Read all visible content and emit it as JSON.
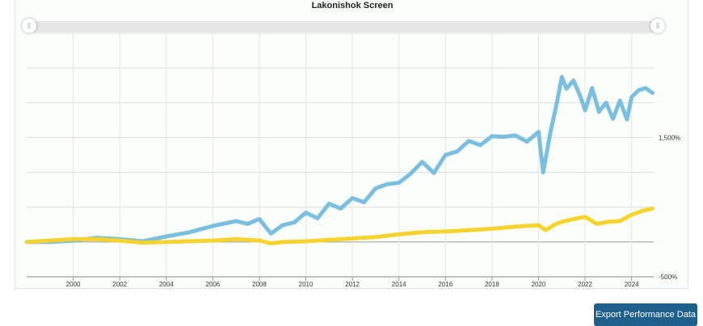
{
  "export_button": {
    "label": "Export Performance Data"
  },
  "chart_data": {
    "type": "line",
    "title": "Lakonishok Screen",
    "xlabel": "",
    "ylabel": "",
    "x_ticks": [
      "2000",
      "2002",
      "2004",
      "2006",
      "2008",
      "2010",
      "2012",
      "2014",
      "2016",
      "2018",
      "2020",
      "2022",
      "2024"
    ],
    "y_tick_labels": [
      "1,500%",
      "-500%"
    ],
    "ylim": [
      -500,
      3000
    ],
    "grid": true,
    "colors": [
      "#7bbfe0",
      "#f6d32d"
    ],
    "series": [
      {
        "name": "",
        "x": [
          1998.0,
          1999.0,
          2000.0,
          2001.0,
          2002.0,
          2003.0,
          2004.0,
          2005.0,
          2006.0,
          2007.0,
          2007.5,
          2008.0,
          2008.5,
          2009.0,
          2009.5,
          2010.0,
          2010.5,
          2011.0,
          2011.5,
          2012.0,
          2012.5,
          2013.0,
          2013.5,
          2014.0,
          2014.5,
          2015.0,
          2015.5,
          2016.0,
          2016.5,
          2017.0,
          2017.5,
          2018.0,
          2018.5,
          2019.0,
          2019.5,
          2020.0,
          2020.2,
          2020.5,
          2020.8,
          2021.0,
          2021.2,
          2021.5,
          2021.8,
          2022.0,
          2022.3,
          2022.6,
          2022.9,
          2023.2,
          2023.5,
          2023.8,
          2024.0,
          2024.3,
          2024.6,
          2024.9
        ],
        "values": [
          0,
          0,
          20,
          60,
          40,
          10,
          80,
          140,
          230,
          300,
          260,
          330,
          120,
          240,
          280,
          420,
          340,
          550,
          480,
          630,
          570,
          770,
          830,
          850,
          980,
          1150,
          990,
          1250,
          1300,
          1450,
          1390,
          1520,
          1510,
          1530,
          1440,
          1580,
          1000,
          1560,
          2020,
          2370,
          2200,
          2320,
          2090,
          1890,
          2210,
          1870,
          2000,
          1770,
          2030,
          1760,
          2080,
          2180,
          2210,
          2140
        ]
      },
      {
        "name": "",
        "x": [
          1998.0,
          1999.0,
          2000.0,
          2001.0,
          2002.0,
          2003.0,
          2004.0,
          2005.0,
          2006.0,
          2007.0,
          2008.0,
          2008.5,
          2009.0,
          2010.0,
          2011.0,
          2012.0,
          2013.0,
          2014.0,
          2015.0,
          2016.0,
          2017.0,
          2018.0,
          2019.0,
          2020.0,
          2020.3,
          2020.7,
          2021.0,
          2021.5,
          2022.0,
          2022.5,
          2023.0,
          2023.5,
          2024.0,
          2024.5,
          2024.9
        ],
        "values": [
          0,
          20,
          40,
          40,
          20,
          -10,
          0,
          10,
          20,
          40,
          20,
          -20,
          0,
          10,
          30,
          50,
          70,
          110,
          140,
          150,
          170,
          190,
          220,
          240,
          170,
          250,
          290,
          330,
          360,
          260,
          290,
          300,
          390,
          450,
          480
        ]
      }
    ]
  }
}
